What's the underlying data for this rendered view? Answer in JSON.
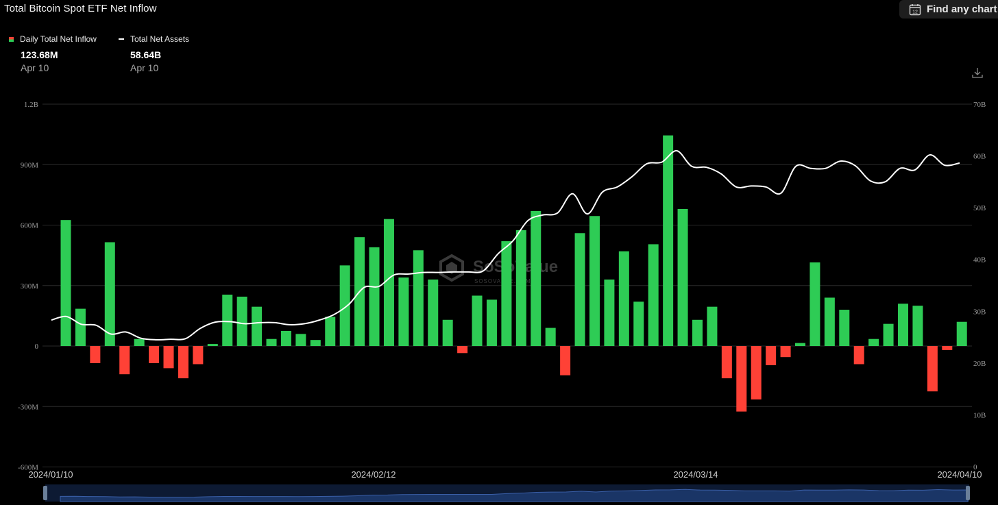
{
  "header": {
    "title": "Total Bitcoin Spot ETF Net Inflow",
    "find_button_label": "Find any chart",
    "calendar_icon_text": "12"
  },
  "legend": [
    {
      "name": "Daily Total Net Inflow",
      "value": "123.68M",
      "date": "Apr 10"
    },
    {
      "name": "Total Net Assets",
      "value": "58.64B",
      "date": "Apr 10"
    }
  ],
  "watermark": {
    "text": "SoSoValue",
    "sub": "SOSOVALUE.COM"
  },
  "colors": {
    "positive": "#2ecc55",
    "negative": "#ff4136",
    "line": "#ffffff",
    "grid": "#2a2a2a",
    "navigator": "#1a3566"
  },
  "chart_data": {
    "type": "bar",
    "left_axis": {
      "ticks": [
        "1.2B",
        "900M",
        "600M",
        "300M",
        "0",
        "-300M",
        "-600M"
      ],
      "range": [
        -600,
        1200
      ],
      "unit": "M"
    },
    "right_axis": {
      "ticks": [
        "70B",
        "60B",
        "50B",
        "40B",
        "30B",
        "20B",
        "10B",
        "0"
      ],
      "range": [
        0,
        70
      ],
      "unit": "B"
    },
    "x_labels": [
      "2024/01/10",
      "2024/02/12",
      "2024/03/14",
      "2024/04/10"
    ],
    "series": [
      {
        "name": "Daily Total Net Inflow",
        "type": "bar",
        "values": [
          625,
          185,
          -85,
          515,
          -140,
          35,
          -85,
          -110,
          -160,
          -90,
          10,
          255,
          245,
          195,
          35,
          75,
          60,
          30,
          145,
          400,
          540,
          490,
          630,
          340,
          475,
          330,
          130,
          -35,
          250,
          230,
          520,
          575,
          670,
          90,
          -145,
          560,
          645,
          330,
          470,
          220,
          505,
          1045,
          680,
          130,
          195,
          -160,
          -325,
          -265,
          -95,
          -55,
          15,
          415,
          240,
          180,
          -90,
          35,
          110,
          210,
          200,
          -225,
          -20,
          120
        ]
      },
      {
        "name": "Total Net Assets",
        "type": "line",
        "values": [
          28.3,
          29.0,
          27.5,
          27.3,
          25.6,
          26.0,
          24.8,
          24.5,
          24.6,
          24.7,
          26.7,
          27.9,
          28.0,
          27.6,
          27.8,
          27.8,
          27.4,
          27.6,
          28.3,
          29.4,
          31.4,
          34.6,
          34.8,
          37.0,
          37.2,
          37.5,
          37.5,
          37.6,
          37.6,
          37.8,
          41.1,
          43.6,
          47.5,
          48.6,
          49.0,
          52.7,
          48.8,
          53.0,
          54.0,
          56.0,
          58.5,
          58.8,
          61.0,
          58.0,
          57.8,
          56.5,
          54.0,
          54.2,
          54.0,
          52.8,
          58.0,
          57.6,
          57.6,
          59.0,
          58.1,
          55.2,
          55.0,
          57.6,
          57.3,
          60.2,
          58.2,
          58.64
        ]
      }
    ]
  }
}
